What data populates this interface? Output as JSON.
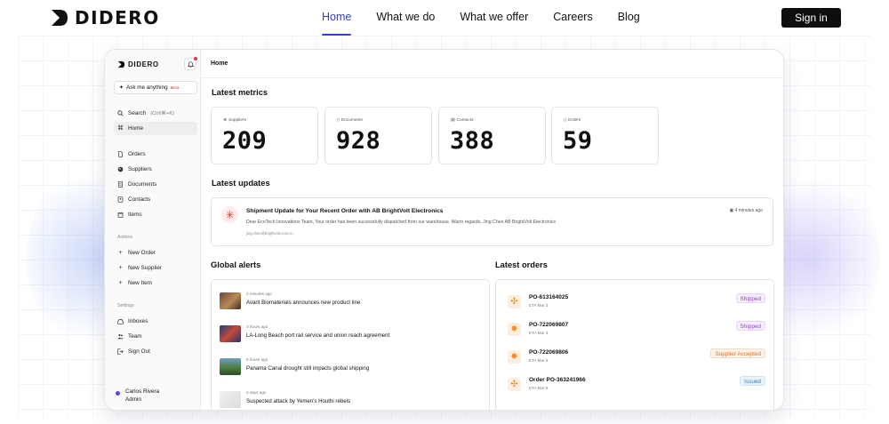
{
  "site": {
    "brand": "DIDERO",
    "nav": [
      "Home",
      "What we do",
      "What we offer",
      "Careers",
      "Blog"
    ],
    "sign_in": "Sign in"
  },
  "app": {
    "brand": "DIDERO",
    "ask": {
      "label": "Ask me anything",
      "badge": "BETA"
    },
    "search": {
      "label": "Search",
      "shortcut": "(Ctrl/⌘+K)"
    },
    "home": "Home",
    "nav_items": [
      "Orders",
      "Suppliers",
      "Documents",
      "Contacts",
      "Items"
    ],
    "actions_label": "Actions",
    "actions": [
      "New Order",
      "New Supplier",
      "New Item"
    ],
    "settings_label": "Settings",
    "settings": [
      "Inboxes",
      "Team",
      "Sign Out"
    ],
    "user": {
      "name": "Carlos Rivera",
      "role": "Admin"
    }
  },
  "main": {
    "breadcrumb": "Home",
    "metrics_title": "Latest metrics",
    "metrics": [
      {
        "label": "Suppliers",
        "value": "209"
      },
      {
        "label": "Documents",
        "value": "928"
      },
      {
        "label": "Contacts",
        "value": "388"
      },
      {
        "label": "Orders",
        "value": "59"
      }
    ],
    "updates_title": "Latest updates",
    "update": {
      "title": "Shipment Update for Your Recent Order with AB BrightVolt Electronics",
      "body": "Dear EcoTech Innovations Team, Your order has been successfully dispatched from our warehouse. Warm regards, Jing Chen AB BrightVolt Electronics",
      "from": "jing.chen@brightvolt.com.cn",
      "time": "4 minutes ago"
    },
    "alerts_title": "Global alerts",
    "alerts": [
      {
        "time": "2 minutes ago",
        "title": "Avant Biomaterials announces new product line"
      },
      {
        "time": "3 hours ago",
        "title": "LA-Long Beach port rail service and union reach agreement"
      },
      {
        "time": "5 hours ago",
        "title": "Panama Canal drought still impacts global shipping"
      },
      {
        "time": "2 days ago",
        "title": "Suspected attack by Yemen's Houthi rebels"
      }
    ],
    "orders_title": "Latest orders",
    "orders": [
      {
        "id": "PO-613164025",
        "eta": "ETA Mar 3",
        "status": "Shipped"
      },
      {
        "id": "PO-722069807",
        "eta": "ETA Mar 3",
        "status": "Shipped"
      },
      {
        "id": "PO-722069806",
        "eta": "ETA Mar 5",
        "status": "Supplier Accepted"
      },
      {
        "id": "Order PO-363241966",
        "eta": "ETA Mar 6",
        "status": "Issued"
      }
    ],
    "colors": {
      "accent": "#3b3fd8",
      "alert_red": "#e53935",
      "order_orange": "#f08a24"
    }
  }
}
